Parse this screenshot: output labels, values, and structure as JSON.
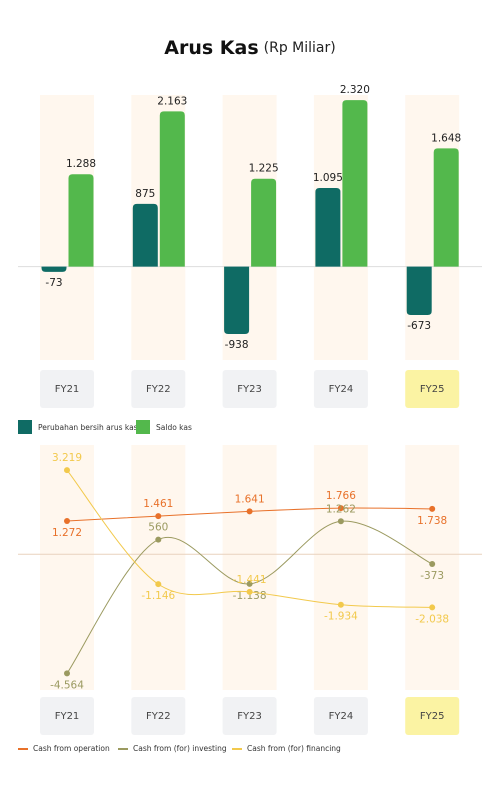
{
  "chart_data": [
    {
      "type": "bar",
      "title": "Arus Kas",
      "subtitle": "(Rp Miliar)",
      "categories": [
        "FY21",
        "FY22",
        "FY23",
        "FY24",
        "FY25"
      ],
      "highlight_index": 4,
      "ylim": [
        -1300,
        2600
      ],
      "series": [
        {
          "name": "Perubahan bersih arus kas",
          "color": "#0f6b64",
          "values": [
            -73,
            875,
            -938,
            1095,
            -673
          ],
          "value_labels": [
            "-73",
            "875",
            "-938",
            "1.095",
            "-673"
          ]
        },
        {
          "name": "Saldo kas",
          "color": "#53b84c",
          "values": [
            1288,
            2163,
            1225,
            2320,
            1648
          ],
          "value_labels": [
            "1.288",
            "2.163",
            "1.225",
            "2.320",
            "1.648"
          ]
        }
      ]
    },
    {
      "type": "line",
      "categories": [
        "FY21",
        "FY22",
        "FY23",
        "FY24",
        "FY25"
      ],
      "highlight_index": 4,
      "ylim": [
        -5200,
        3800
      ],
      "series": [
        {
          "name": "Cash from operation",
          "color": "#e8712a",
          "values": [
            1272,
            1461,
            1641,
            1766,
            1738
          ],
          "value_labels": [
            "1.272",
            "1.461",
            "1.641",
            "1.766",
            "1.738"
          ]
        },
        {
          "name": "Cash from (for) investing",
          "color": "#9b9a60",
          "values": [
            -4564,
            560,
            -1138,
            1262,
            -373
          ],
          "value_labels": [
            "-4.564",
            "560",
            "-1.138",
            "1.262",
            "-373"
          ]
        },
        {
          "name": "Cash from (for) financing",
          "color": "#f2c94c",
          "values": [
            3219,
            -1146,
            -1441,
            -1934,
            -2038
          ],
          "value_labels": [
            "3.219",
            "-1.146",
            "-1.441",
            "-1.934",
            "-2.038"
          ]
        }
      ]
    }
  ]
}
